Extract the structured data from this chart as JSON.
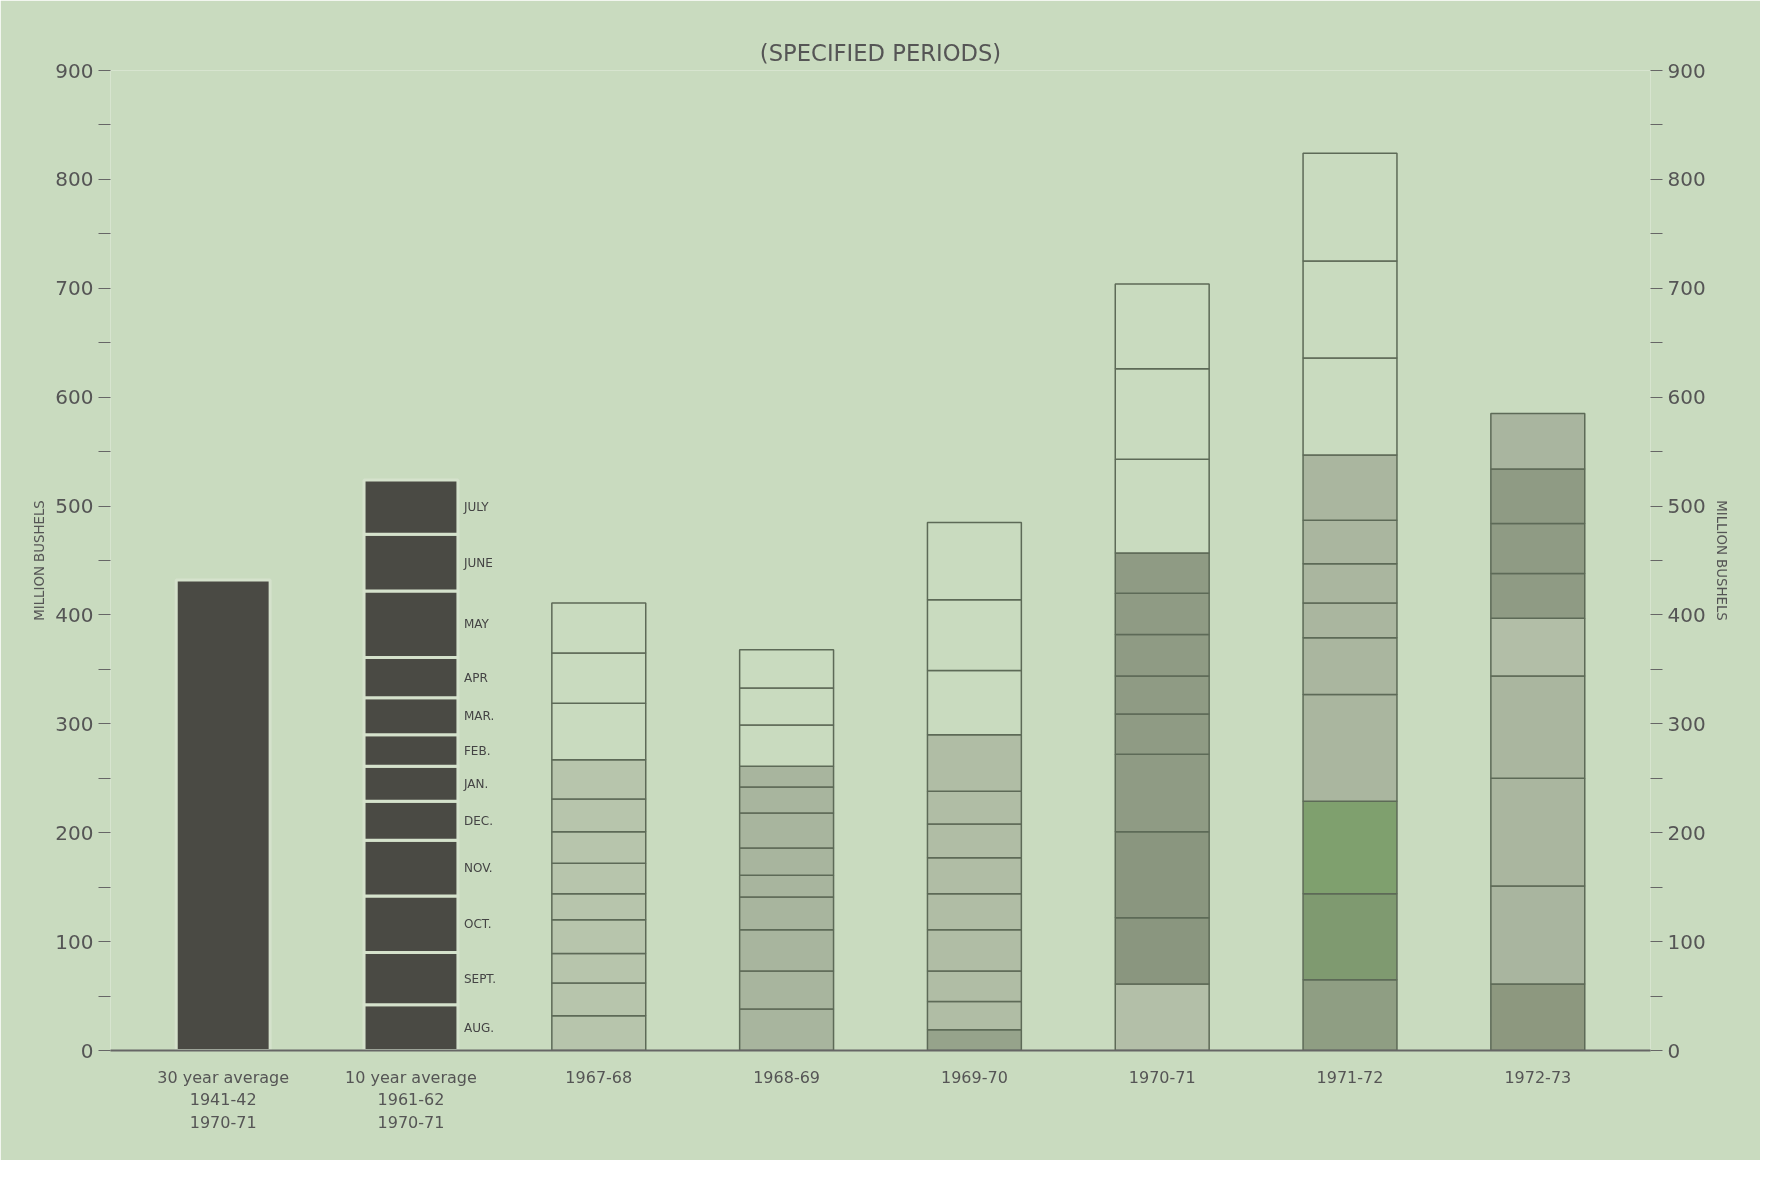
{
  "chart_data": {
    "type": "bar",
    "stacked": true,
    "title": "(SPECIFIED PERIODS)",
    "ylabel": "MILLION BUSHELS",
    "y2label": "MILLION BUSHELS",
    "categories": [
      "30 year average\n1941-42\n1970-71",
      "10 year average\n1961-62\n1970-71",
      "1967-68",
      "1968-69",
      "1969-70",
      "1970-71",
      "1971-72",
      "1972-73"
    ],
    "series": [
      {
        "values": [
          432,
          null,
          null,
          null,
          null,
          null,
          null,
          null
        ],
        "color": "#4a4a44"
      },
      {
        "name": "AUG.",
        "values": [
          null,
          42,
          32,
          38,
          19,
          61,
          65,
          61
        ],
        "colors": [
          "#4a4a44",
          "#4a4a44",
          "#b7c5ac",
          "#a8b59e",
          "#96a38b",
          "#b3bfa8",
          "#8f9e83",
          "#8d987f"
        ]
      },
      {
        "name": "SEPT.",
        "values": [
          null,
          48,
          30,
          35,
          26,
          61,
          79,
          90
        ],
        "colors": [
          "#4a4a44",
          "#4a4a44",
          "#b7c5ac",
          "#a8b59e",
          "#b0bda5",
          "#8a967f",
          "#7f9a70",
          "#a9b59f"
        ]
      },
      {
        "name": "OCT.",
        "values": [
          null,
          52,
          27,
          38,
          28,
          79,
          85,
          99
        ],
        "colors": [
          "#4a4a44",
          "#4a4a44",
          "#b7c5ac",
          "#a8b59e",
          "#b0bda5",
          "#8a967f",
          "#7fa06e",
          "#aab69f"
        ]
      },
      {
        "name": "NOV.",
        "values": [
          null,
          51,
          31,
          30,
          38,
          71,
          98,
          94
        ],
        "colors": [
          "#4a4a44",
          "#4a4a44",
          "#b7c5ac",
          "#a8b59e",
          "#b0bda5",
          "#8f9b84",
          "#aab69f",
          "#aab69f"
        ]
      },
      {
        "name": "DEC.",
        "values": [
          null,
          36,
          24,
          20,
          33,
          37,
          52,
          53
        ],
        "colors": [
          "#4a4a44",
          "#4a4a44",
          "#b7c5ac",
          "#a8b59e",
          "#b0bda5",
          "#8f9b84",
          "#aab69f",
          "#b2bea7"
        ]
      },
      {
        "name": "JAN.",
        "values": [
          null,
          32,
          28,
          25,
          33,
          35,
          32,
          41
        ],
        "colors": [
          "#4a4a44",
          "#4a4a44",
          "#b7c5ac",
          "#a8b59e",
          "#b0bda5",
          "#8f9b84",
          "#aab69f",
          "#8f9b84"
        ]
      },
      {
        "name": "FEB.",
        "values": [
          null,
          29,
          29,
          32,
          31,
          38,
          36,
          46
        ],
        "colors": [
          "#4a4a44",
          "#4a4a44",
          "#b7c5ac",
          "#a8b59e",
          "#b0bda5",
          "#8f9b84",
          "#aab69f",
          "#8f9b84"
        ]
      },
      {
        "name": "MAR.",
        "values": [
          null,
          34,
          30,
          24,
          30,
          38,
          40,
          50
        ],
        "colors": [
          "#4a4a44",
          "#4a4a44",
          "#b7c5ac",
          "#a8b59e",
          "#b0bda5",
          "#8f9b84",
          "#aab69f",
          "#8f9b84"
        ]
      },
      {
        "name": "APR",
        "values": [
          null,
          37,
          36,
          19,
          52,
          37,
          60,
          51
        ],
        "colors": [
          "#4a4a44",
          "#4a4a44",
          "#b7c5ac",
          "#a8b59e",
          "#b0bda5",
          "#8f9b84",
          "#aab69f",
          "#a9b59f"
        ]
      },
      {
        "name": "MAY",
        "values": [
          null,
          61,
          52,
          38,
          59,
          86,
          89,
          null
        ],
        "colors": [
          "#4a4a44",
          "#4a4a44",
          "#c9dbbf",
          "#c9dbbf",
          "#c9dbbf",
          "#c9dbbf",
          "#c9dbbf",
          "#c9dbbf"
        ]
      },
      {
        "name": "JUNE",
        "values": [
          null,
          52,
          46,
          34,
          65,
          83,
          89,
          null
        ],
        "colors": [
          "#4a4a44",
          "#4a4a44",
          "#c9dbbf",
          "#c9dbbf",
          "#c9dbbf",
          "#c9dbbf",
          "#c9dbbf",
          "#c9dbbf"
        ]
      },
      {
        "name": "JULY",
        "values": [
          null,
          50,
          46,
          35,
          71,
          78,
          99,
          null
        ],
        "colors": [
          "#4a4a44",
          "#4a4a44",
          "#c9dbbf",
          "#c9dbbf",
          "#c9dbbf",
          "#c9dbbf",
          "#c9dbbf",
          "#c9dbbf"
        ]
      }
    ],
    "ylim": [
      0,
      900
    ],
    "yticks": [
      0,
      {
        "value": 50,
        "label": null
      },
      100,
      {
        "value": 150,
        "label": null
      },
      200,
      {
        "value": 250,
        "label": null
      },
      300,
      {
        "value": 350,
        "label": null
      },
      400,
      {
        "value": 450,
        "label": null
      },
      500,
      {
        "value": 550,
        "label": null
      },
      600,
      {
        "value": 650,
        "label": null
      },
      700,
      {
        "value": 750,
        "label": null
      },
      800,
      {
        "value": 850,
        "label": null
      },
      900
    ],
    "y2lim": [
      0,
      900
    ],
    "y2ticks": [
      0,
      {
        "value": 50,
        "label": null
      },
      100,
      {
        "value": 150,
        "label": null
      },
      200,
      {
        "value": 250,
        "label": null
      },
      300,
      {
        "value": 350,
        "label": null
      },
      400,
      {
        "value": 450,
        "label": null
      },
      500,
      {
        "value": 550,
        "label": null
      },
      600,
      {
        "value": 650,
        "label": null
      },
      700,
      {
        "value": 750,
        "label": null
      },
      800,
      {
        "value": 850,
        "label": null
      },
      900
    ],
    "grid": false
  }
}
